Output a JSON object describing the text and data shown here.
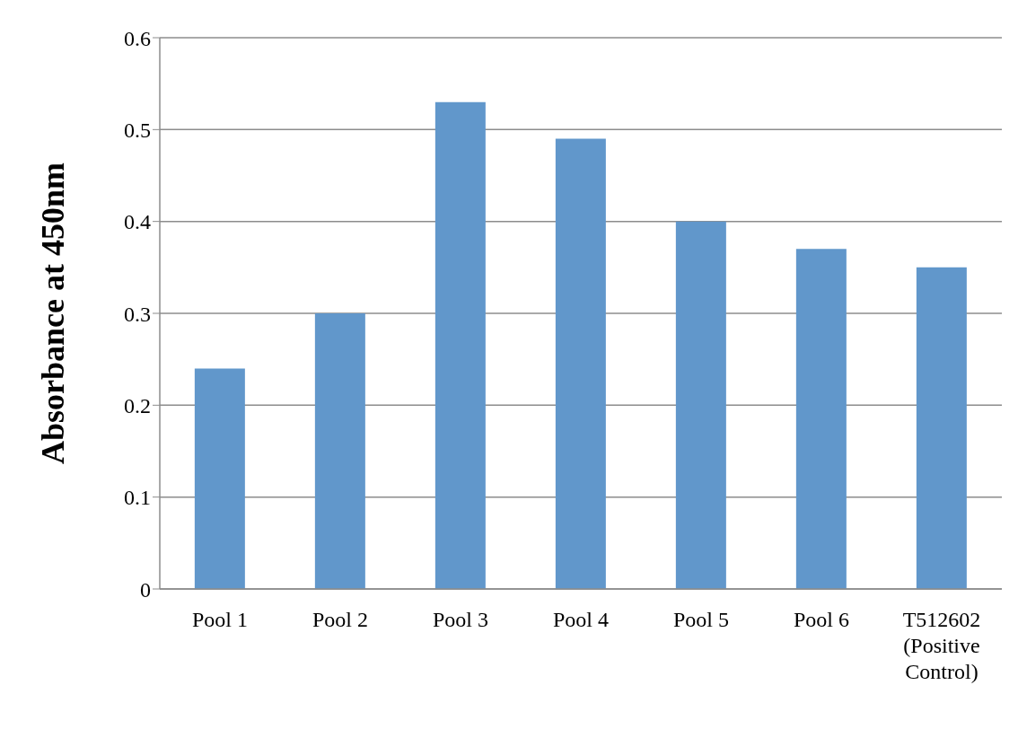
{
  "chart_data": {
    "type": "bar",
    "ylabel": "Absorbance at 450nm",
    "categories": [
      "Pool 1",
      "Pool 2",
      "Pool 3",
      "Pool 4",
      "Pool 5",
      "Pool 6",
      "T512602 (Positive Control)"
    ],
    "values": [
      0.24,
      0.3,
      0.53,
      0.49,
      0.4,
      0.37,
      0.35
    ],
    "color": "#6197cb",
    "ylim": [
      0,
      0.6
    ],
    "yticks": [
      0,
      0.1,
      0.2,
      0.3,
      0.4,
      0.5,
      0.6
    ],
    "grid": "y"
  }
}
